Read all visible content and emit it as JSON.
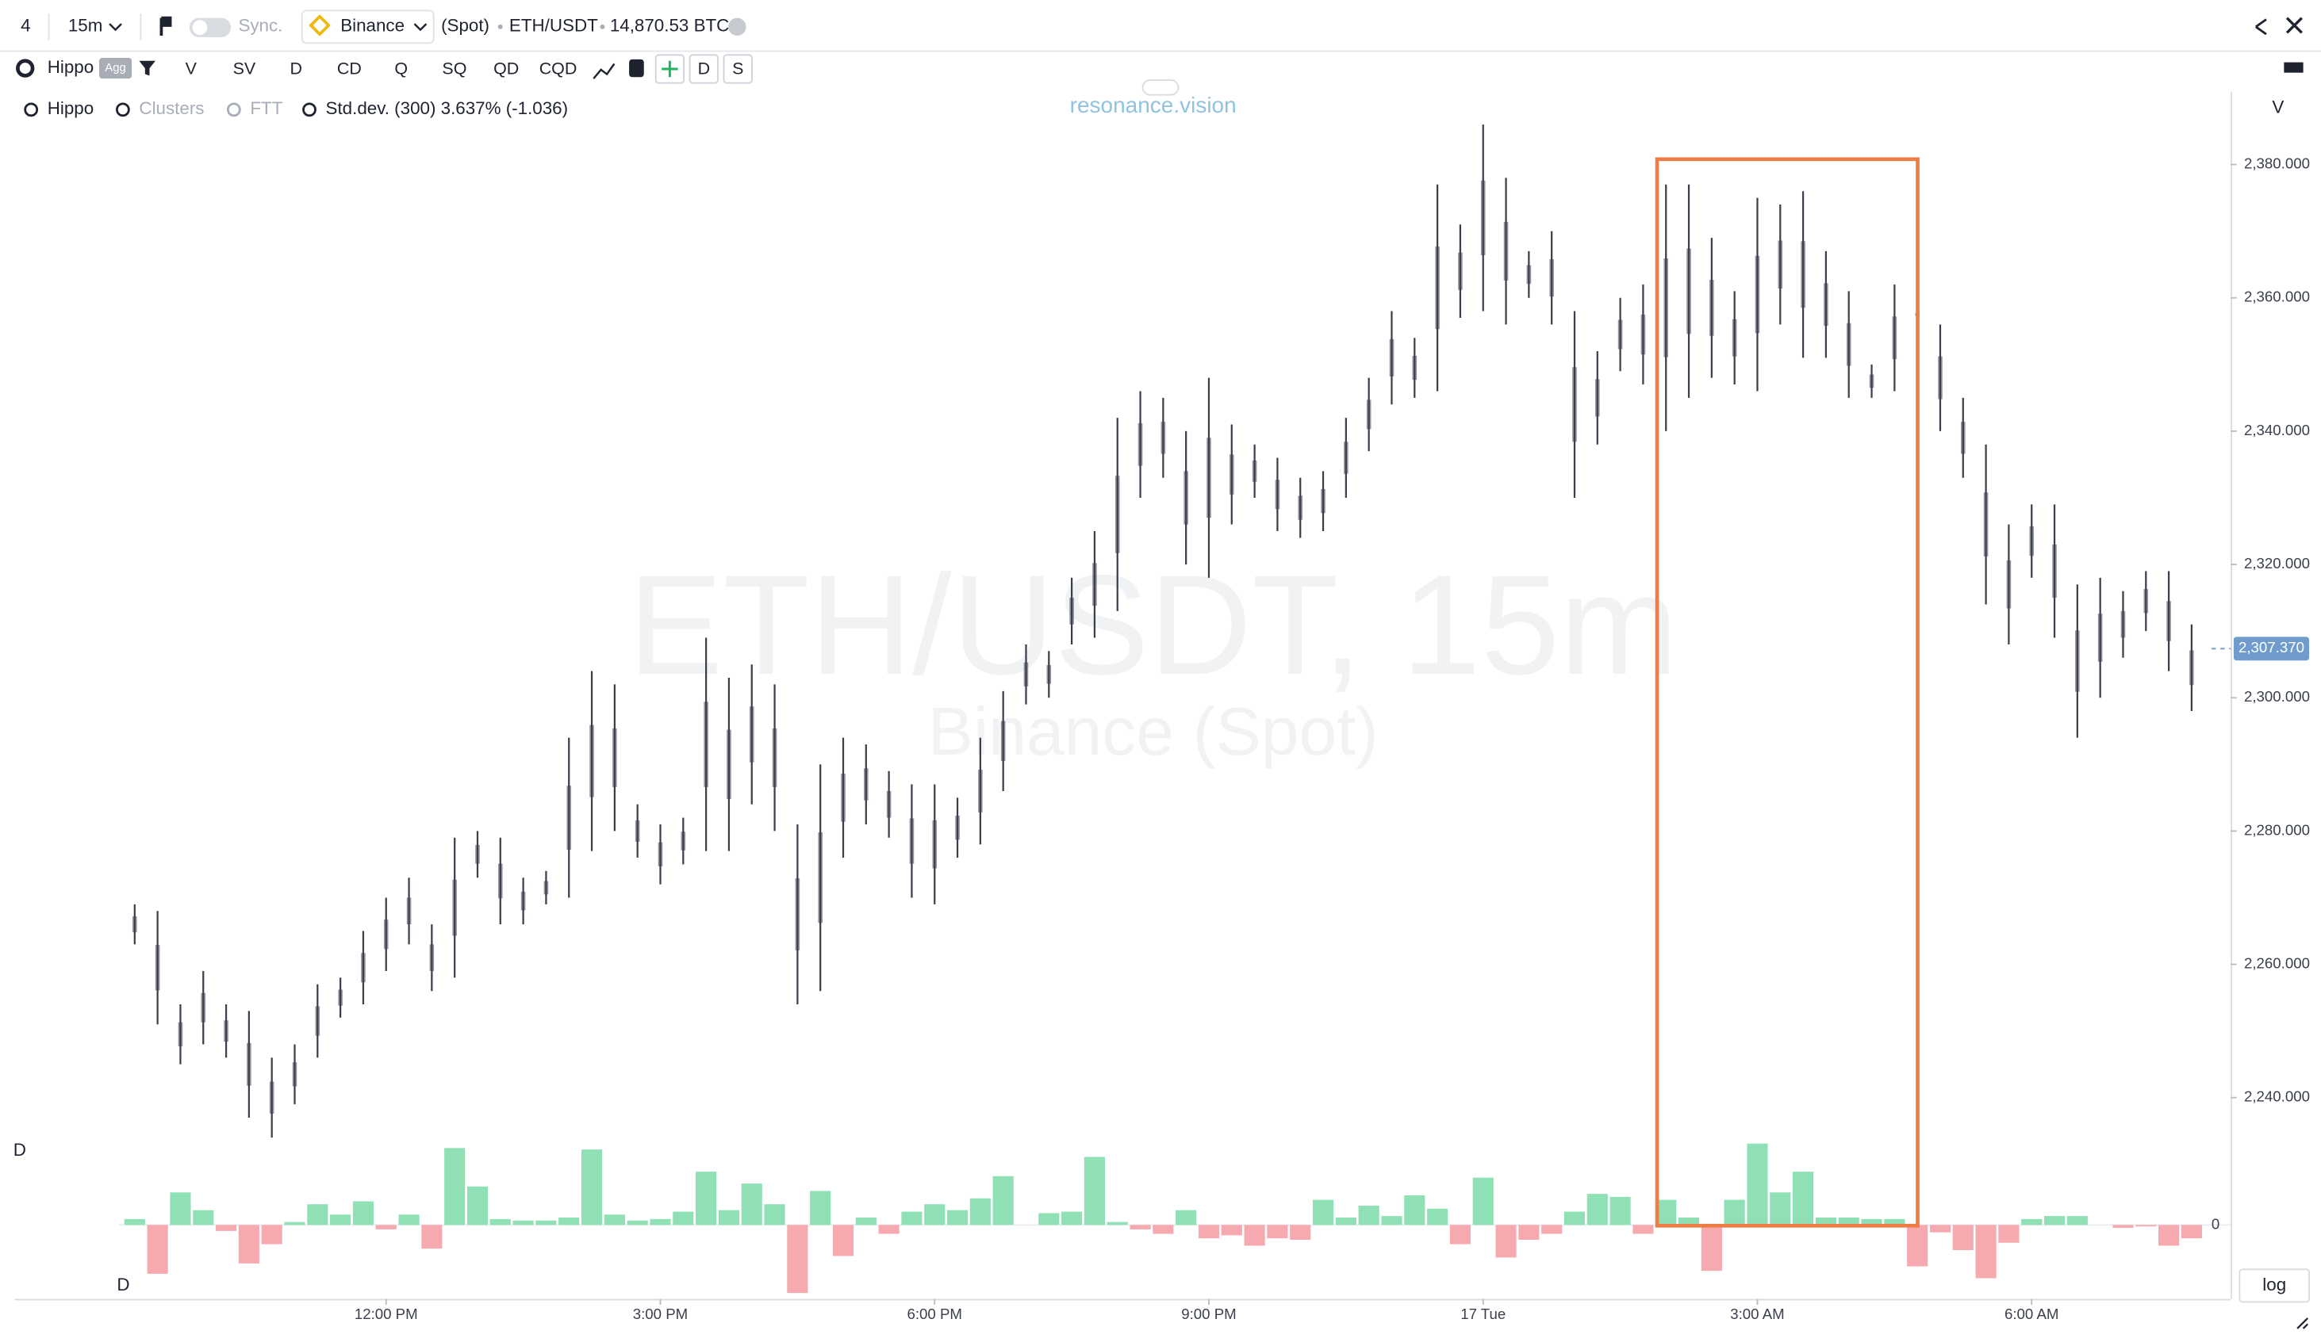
{
  "toolbar": {
    "count": "4",
    "interval": "15m",
    "sync": "Sync.",
    "exchange": "Binance",
    "market": "(Spot)",
    "symbol": "ETH/USDT",
    "volume": "14,870.53 BTC"
  },
  "toolbar2": {
    "indicator": "Hippo",
    "badge": "Agg",
    "buttons": [
      "V",
      "SV",
      "D",
      "CD",
      "Q",
      "SQ",
      "QD",
      "CQD"
    ],
    "right_buttons": [
      "D",
      "S"
    ]
  },
  "legend": {
    "items": [
      "Hippo",
      "Clusters",
      "FTT"
    ],
    "stddev": "Std.dev. (300) 3.637% (-1.036)"
  },
  "watermark": {
    "site": "resonance.vision",
    "title": "ETH/USDT, 15m",
    "subtitle": "Binance (Spot)"
  },
  "pane_labels": {
    "price_pane": "V",
    "delta_pane": "D",
    "delta_pane_2": "D",
    "scale": "log"
  },
  "chart_data": {
    "type": "candlestick",
    "color": "#3a3f4b",
    "categories": [
      null,
      null,
      null,
      null,
      null,
      null,
      null,
      null,
      null,
      null,
      null,
      "12:00 PM",
      null,
      null,
      null,
      null,
      null,
      null,
      null,
      null,
      null,
      null,
      null,
      "3:00 PM",
      null,
      null,
      null,
      null,
      null,
      null,
      null,
      null,
      null,
      null,
      null,
      "6:00 PM",
      null,
      null,
      null,
      null,
      null,
      null,
      null,
      null,
      null,
      null,
      null,
      "9:00 PM",
      null,
      null,
      null,
      null,
      null,
      null,
      null,
      null,
      null,
      null,
      null,
      "17 Tue",
      null,
      null,
      null,
      null,
      null,
      null,
      null,
      null,
      null,
      null,
      null,
      "3:00 AM",
      null,
      null,
      null,
      null,
      null,
      null,
      null,
      null,
      null,
      null,
      null,
      "6:00 AM",
      null,
      null,
      null,
      null,
      null,
      null,
      null
    ],
    "high": [
      2269,
      2268,
      2254,
      2259,
      2254,
      2253,
      2246,
      2248,
      2257,
      2258,
      2265,
      2270,
      2273,
      2266,
      2279,
      2280,
      2279,
      2273,
      2274,
      2294,
      2304,
      2302,
      2284,
      2281,
      2282,
      2309,
      2303,
      2305,
      2302,
      2281,
      2290,
      2294,
      2293,
      2289,
      2287,
      2287,
      2285,
      2294,
      2301,
      2308,
      2307,
      2318,
      2325,
      2342,
      2346,
      2345,
      2340,
      2348,
      2341,
      2338,
      2336,
      2333,
      2334,
      2342,
      2348,
      2358,
      2354,
      2377,
      2371,
      2386,
      2378,
      2367,
      2370,
      2358,
      2352,
      2360,
      2362,
      2377,
      2377,
      2369,
      2361,
      2375,
      2374,
      2376,
      2367,
      2361,
      2350,
      2362,
      2358,
      2356,
      2345,
      2338,
      2326,
      2329,
      2329,
      2317,
      2318,
      2316,
      2319,
      2319,
      2311
    ],
    "low": [
      2263,
      2251,
      2245,
      2248,
      2246,
      2237,
      2234,
      2239,
      2246,
      2252,
      2254,
      2259,
      2263,
      2256,
      2258,
      2273,
      2266,
      2266,
      2269,
      2270,
      2277,
      2280,
      2276,
      2272,
      2275,
      2277,
      2277,
      2284,
      2280,
      2254,
      2256,
      2276,
      2281,
      2279,
      2270,
      2269,
      2276,
      2278,
      2286,
      2299,
      2300,
      2308,
      2309,
      2313,
      2330,
      2333,
      2320,
      2318,
      2326,
      2330,
      2325,
      2324,
      2325,
      2330,
      2337,
      2344,
      2345,
      2346,
      2357,
      2358,
      2356,
      2360,
      2356,
      2330,
      2338,
      2349,
      2347,
      2340,
      2345,
      2348,
      2347,
      2346,
      2356,
      2351,
      2351,
      2345,
      2345,
      2346,
      2357,
      2340,
      2333,
      2314,
      2308,
      2318,
      2309,
      2294,
      2300,
      2306,
      2310,
      2304,
      2298
    ],
    "ylim": [
      2209.8,
      2390.9
    ],
    "yticks": [
      {
        "value": 2240,
        "label": "2,240.000"
      },
      {
        "value": 2260,
        "label": "2,260.000"
      },
      {
        "value": 2280,
        "label": "2,280.000"
      },
      {
        "value": 2300,
        "label": "2,300.000"
      },
      {
        "value": 2320,
        "label": "2,320.000"
      },
      {
        "value": 2340,
        "label": "2,340.000"
      },
      {
        "value": 2360,
        "label": "2,360.000"
      },
      {
        "value": 2380,
        "label": "2,380.000"
      }
    ],
    "last_price": {
      "value": 2307.37,
      "label": "2,307.370"
    },
    "delta": {
      "up_color": "#8fe0b4",
      "down_color": "#f7a9b0",
      "values": [
        4,
        -33,
        22,
        10,
        -4,
        -26,
        -13,
        2,
        14,
        7,
        16,
        -3,
        7,
        -16,
        52,
        26,
        4,
        3,
        3,
        5,
        51,
        7,
        3,
        4,
        9,
        36,
        10,
        28,
        14,
        -46,
        23,
        -21,
        5,
        -6,
        9,
        14,
        10,
        18,
        33,
        0,
        8,
        9,
        46,
        2,
        -3,
        -6,
        10,
        -9,
        -7,
        -14,
        -9,
        -10,
        17,
        5,
        13,
        6,
        20,
        11,
        -13,
        32,
        -22,
        -10,
        -6,
        9,
        21,
        19,
        -6,
        17,
        5,
        -31,
        17,
        55,
        22,
        36,
        5,
        5,
        4,
        4,
        -28,
        -5,
        -17,
        -36,
        -12,
        4,
        6,
        6,
        0,
        -2,
        -1,
        -14,
        -9
      ],
      "ylim": [
        -50,
        60
      ],
      "yticks": [
        0
      ]
    }
  }
}
